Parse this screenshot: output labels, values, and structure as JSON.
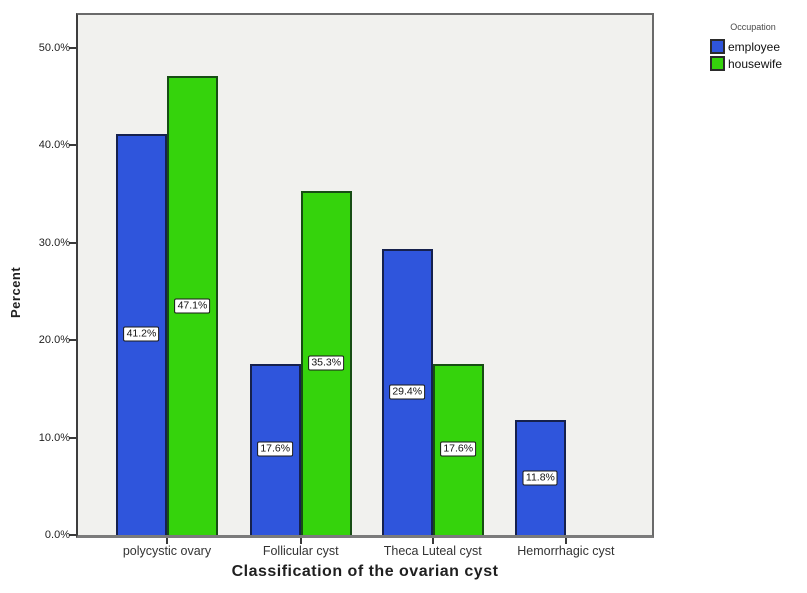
{
  "chart_data": {
    "type": "bar",
    "title": "",
    "xlabel": "Classification of the ovarian cyst",
    "ylabel": "Percent",
    "categories": [
      "polycystic ovary",
      "Follicular cyst",
      "Theca Luteal cyst",
      "Hemorrhagic cyst"
    ],
    "series": [
      {
        "name": "employee",
        "color": "#2f55dc",
        "border_color": "#16214d",
        "values": [
          41.2,
          17.6,
          29.4,
          11.8
        ],
        "labels": [
          "41.2%",
          "17.6%",
          "29.4%",
          "11.8%"
        ]
      },
      {
        "name": "housewife",
        "color": "#35d30c",
        "border_color": "#174d14",
        "values": [
          47.1,
          35.3,
          17.6,
          0
        ],
        "labels": [
          "47.1%",
          "35.3%",
          "17.6%",
          ""
        ]
      }
    ],
    "y_ticks": [
      "0.0%",
      "10.0%",
      "20.0%",
      "30.0%",
      "40.0%",
      "50.0%"
    ],
    "y_tick_values": [
      0,
      10,
      20,
      30,
      40,
      50
    ],
    "ylim": [
      0,
      53.4
    ],
    "grid": false,
    "legend_position": "top-right",
    "legend_title": "Occupation"
  }
}
